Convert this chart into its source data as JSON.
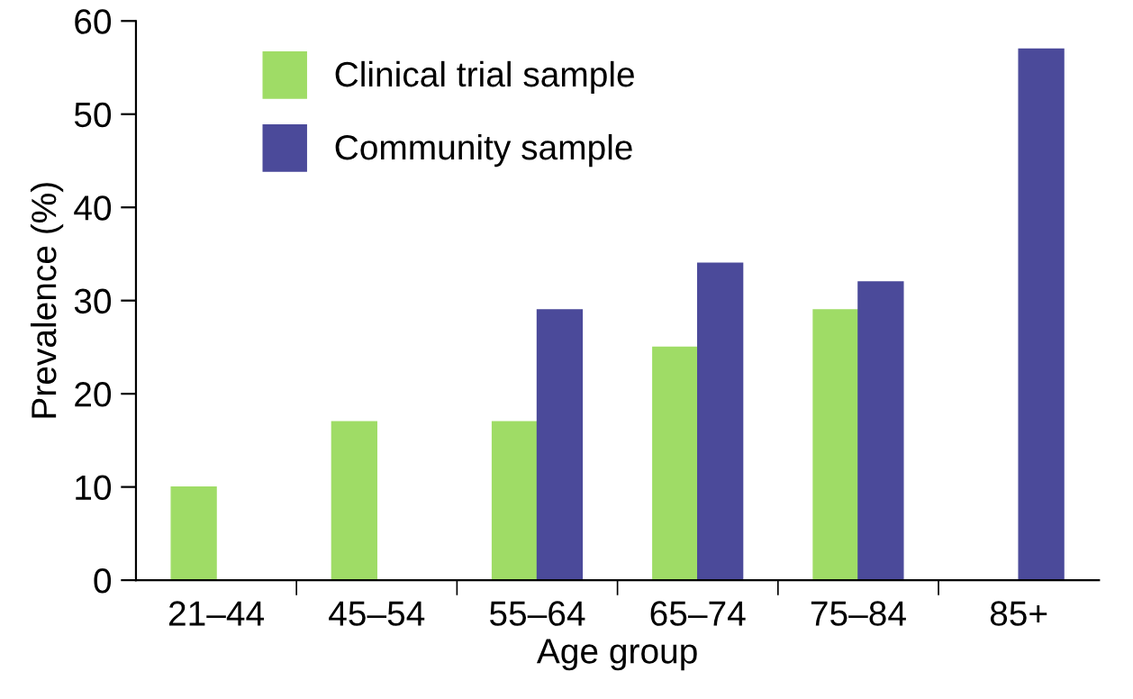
{
  "chart_data": {
    "type": "bar",
    "xlabel": "Age group",
    "ylabel": "Prevalence (%)",
    "categories": [
      "21–44",
      "45–54",
      "55–64",
      "65–74",
      "75–84",
      "85+"
    ],
    "series": [
      {
        "name": "Clinical trial sample",
        "color": "#9fdc66",
        "values": [
          10,
          17,
          17,
          25,
          29,
          null
        ]
      },
      {
        "name": "Community sample",
        "color": "#4b4a9a",
        "values": [
          null,
          null,
          29,
          34,
          32,
          57
        ]
      }
    ],
    "ylim": [
      0,
      60
    ],
    "yticks": [
      0,
      10,
      20,
      30,
      40,
      50,
      60
    ],
    "grid": false,
    "legend": "top left"
  }
}
